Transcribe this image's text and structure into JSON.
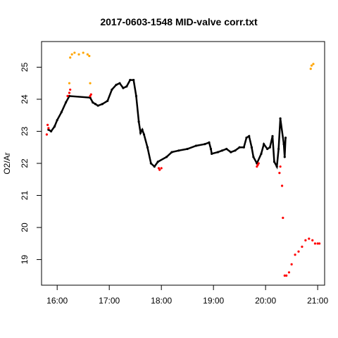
{
  "chart_data": {
    "type": "scatter",
    "title": "2017-0603-1548 MID-valve corr.txt",
    "xlabel": "",
    "ylabel": "O2/Ar",
    "xlim": [
      "15:42",
      "21:08"
    ],
    "ylim": [
      18.2,
      25.8
    ],
    "x_ticks": [
      "16:00",
      "17:00",
      "18:00",
      "19:00",
      "20:00",
      "21:00"
    ],
    "y_ticks": [
      19,
      20,
      21,
      22,
      23,
      24,
      25
    ],
    "grid": false,
    "legend": "none",
    "colors": {
      "normal": "#000000",
      "flagged_low": "#ff0000",
      "flagged_high": "#ffa500"
    },
    "series": [
      {
        "color": "#000000",
        "x": [
          "15:50",
          "15:53",
          "15:57",
          "16:00",
          "16:05",
          "16:10",
          "16:14",
          "16:38",
          "16:41",
          "16:44",
          "16:47",
          "16:52",
          "16:58",
          "17:03",
          "17:08",
          "17:12",
          "17:16",
          "17:20",
          "17:24",
          "17:28",
          "17:31",
          "17:34",
          "17:36",
          "17:38",
          "17:40",
          "17:44",
          "17:48",
          "17:52",
          "17:56",
          "18:06",
          "18:12",
          "18:20",
          "18:30",
          "18:40",
          "18:50",
          "18:55",
          "18:57",
          "18:58",
          "19:05",
          "19:10",
          "19:15",
          "19:20",
          "19:25",
          "19:30",
          "19:35",
          "19:38",
          "19:41",
          "19:44",
          "19:46",
          "19:50",
          "19:55",
          "19:58",
          "20:02",
          "20:05",
          "20:08",
          "20:10",
          "20:13",
          "20:15",
          "20:17",
          "20:21",
          "20:22",
          "20:23"
        ],
        "y": [
          23.05,
          23.0,
          23.15,
          23.35,
          23.6,
          23.9,
          24.1,
          24.05,
          23.9,
          23.85,
          23.8,
          23.85,
          23.95,
          24.3,
          24.45,
          24.5,
          24.35,
          24.4,
          24.6,
          24.6,
          24.1,
          23.3,
          22.95,
          23.05,
          22.9,
          22.5,
          22.0,
          21.9,
          22.05,
          22.2,
          22.35,
          22.4,
          22.45,
          22.55,
          22.6,
          22.65,
          22.45,
          22.3,
          22.35,
          22.4,
          22.45,
          22.35,
          22.4,
          22.5,
          22.5,
          22.8,
          22.85,
          22.5,
          22.2,
          22.0,
          22.3,
          22.6,
          22.45,
          22.5,
          22.85,
          22.05,
          21.9,
          22.45,
          23.4,
          22.6,
          22.2,
          22.8
        ]
      },
      {
        "color": "#ff0000",
        "x": [
          "15:48",
          "15:49",
          "15:50",
          "16:12",
          "16:14",
          "16:15",
          "16:38",
          "16:39",
          "17:57",
          "17:58",
          "18:00",
          "19:50",
          "19:51",
          "19:52",
          "20:16",
          "20:17",
          "20:19",
          "20:20",
          "20:22",
          "20:24",
          "20:27",
          "20:30",
          "20:34",
          "20:38",
          "20:42",
          "20:46",
          "20:50",
          "20:54",
          "20:57",
          "21:00",
          "21:02"
        ],
        "y": [
          22.9,
          23.2,
          23.1,
          24.1,
          24.2,
          24.3,
          24.1,
          24.15,
          21.85,
          21.8,
          21.85,
          21.9,
          21.95,
          22.0,
          21.7,
          21.9,
          21.3,
          20.3,
          18.5,
          18.5,
          18.6,
          18.85,
          19.15,
          19.25,
          19.4,
          19.6,
          19.65,
          19.6,
          19.5,
          19.5,
          19.5
        ]
      },
      {
        "color": "#ffa500",
        "x": [
          "16:14",
          "16:15",
          "16:17",
          "16:20",
          "16:25",
          "16:30",
          "16:35",
          "16:37",
          "16:38",
          "20:52",
          "20:53",
          "20:55"
        ],
        "y": [
          24.5,
          25.3,
          25.4,
          25.45,
          25.4,
          25.45,
          25.4,
          25.35,
          24.5,
          24.95,
          25.05,
          25.1
        ]
      }
    ]
  }
}
